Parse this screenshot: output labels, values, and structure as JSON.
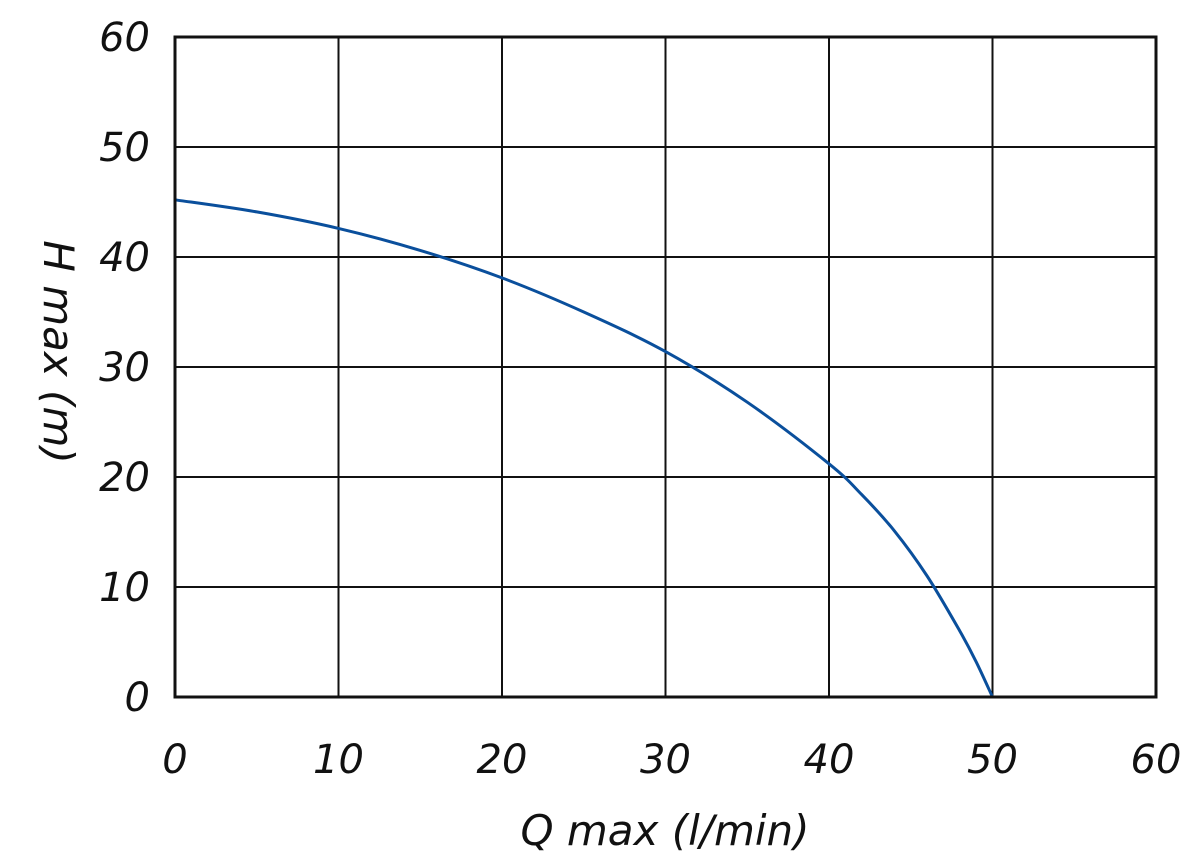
{
  "chart_data": {
    "type": "line",
    "title": "",
    "xlabel": "Q max (l/min)",
    "ylabel": "H max (m)",
    "xlim": [
      0,
      60
    ],
    "ylim": [
      0,
      60
    ],
    "x_ticks": [
      "0",
      "10",
      "20",
      "30",
      "40",
      "50",
      "60"
    ],
    "y_ticks": [
      "0",
      "10",
      "20",
      "30",
      "40",
      "50",
      "60"
    ],
    "grid": true,
    "legend": "none",
    "series": [
      {
        "color": "#0a4f9c",
        "x": [
          0,
          5,
          10,
          15,
          20,
          25,
          30,
          35,
          40,
          42,
          44,
          46,
          48,
          49,
          50
        ],
        "y": [
          45.2,
          44.1,
          42.6,
          40.6,
          38.1,
          35.0,
          31.4,
          26.8,
          21.2,
          18.4,
          15.1,
          11.0,
          6.0,
          3.2,
          0
        ]
      }
    ]
  }
}
